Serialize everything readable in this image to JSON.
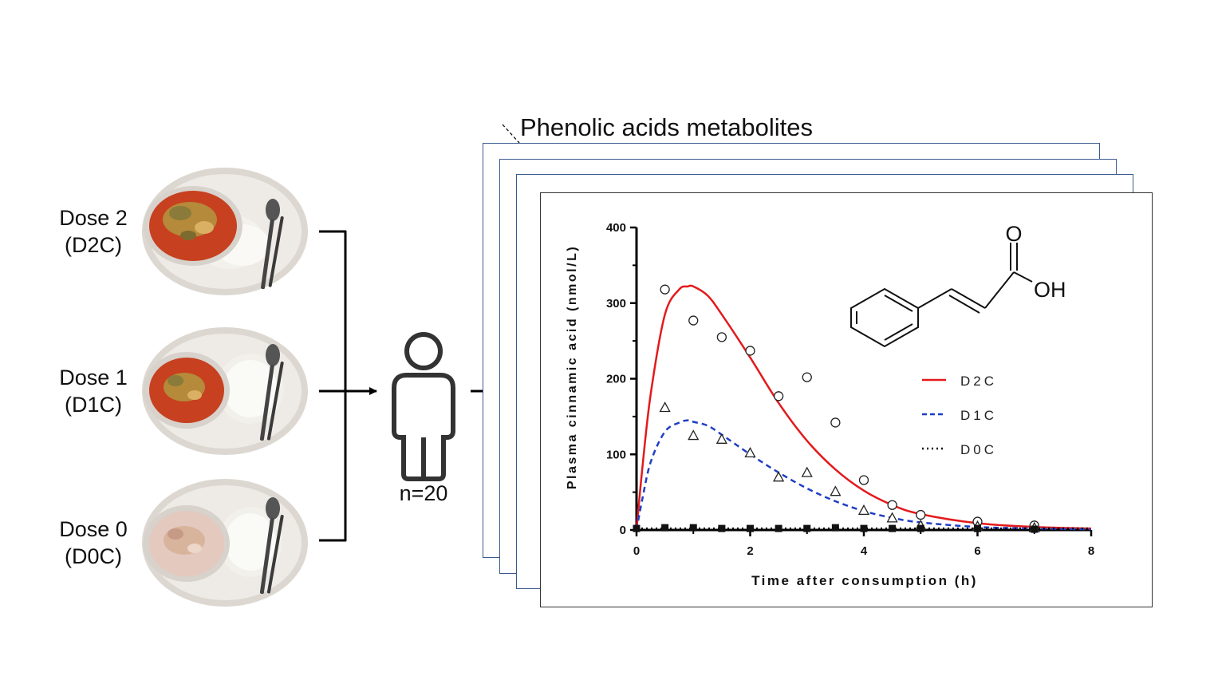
{
  "doses": [
    {
      "name": "Dose 2",
      "code": "(D2C)"
    },
    {
      "name": "Dose 1",
      "code": "(D1C)"
    },
    {
      "name": "Dose 0",
      "code": "(D0C)"
    }
  ],
  "participants_label": "n=20",
  "panel_title": "Phenolic acids metabolites",
  "structure_labels": {
    "carbonyl_o": "O",
    "hydroxyl": "OH"
  },
  "colors": {
    "d2c": "#e31a1c",
    "d1c": "#1f3fc4",
    "d0c": "#000000",
    "frame": "#3b5a8f"
  },
  "chart_data": {
    "type": "scatter",
    "xlabel": "Time after consumption (h)",
    "ylabel": "Plasma cinnamic acid (nmol/L)",
    "xlim": [
      0,
      8
    ],
    "ylim": [
      0,
      400
    ],
    "xticks": [
      "0",
      "2",
      "4",
      "6",
      "8"
    ],
    "yticks": [
      "0",
      "100",
      "200",
      "300",
      "400"
    ],
    "legend_position": "right",
    "series": [
      {
        "name": "D2C",
        "marker": "circle",
        "line": "solid",
        "points": [
          [
            0.5,
            318
          ],
          [
            1,
            277
          ],
          [
            1.5,
            255
          ],
          [
            2,
            237
          ],
          [
            2.5,
            177
          ],
          [
            3,
            202
          ],
          [
            3.5,
            142
          ],
          [
            4,
            66
          ],
          [
            4.5,
            33
          ],
          [
            5,
            20
          ],
          [
            6,
            11
          ],
          [
            7,
            6
          ]
        ],
        "fit": [
          [
            0,
            0
          ],
          [
            0.1,
            80
          ],
          [
            0.25,
            180
          ],
          [
            0.5,
            285
          ],
          [
            0.75,
            318
          ],
          [
            0.9,
            322
          ],
          [
            1.0,
            322
          ],
          [
            1.25,
            310
          ],
          [
            1.5,
            285
          ],
          [
            2,
            228
          ],
          [
            2.5,
            168
          ],
          [
            3,
            118
          ],
          [
            3.5,
            80
          ],
          [
            4,
            52
          ],
          [
            4.5,
            33
          ],
          [
            5,
            21
          ],
          [
            6,
            9
          ],
          [
            7,
            4
          ],
          [
            8,
            2
          ]
        ]
      },
      {
        "name": "D1C",
        "marker": "triangle",
        "line": "dashed",
        "points": [
          [
            0.5,
            162
          ],
          [
            1,
            125
          ],
          [
            1.5,
            120
          ],
          [
            2,
            102
          ],
          [
            2.5,
            70
          ],
          [
            3,
            76
          ],
          [
            3.5,
            51
          ],
          [
            4,
            26
          ],
          [
            4.5,
            16
          ],
          [
            5,
            6
          ],
          [
            6,
            5
          ],
          [
            7,
            3
          ]
        ],
        "fit": [
          [
            0,
            0
          ],
          [
            0.1,
            40
          ],
          [
            0.25,
            90
          ],
          [
            0.5,
            130
          ],
          [
            0.75,
            142
          ],
          [
            0.9,
            145
          ],
          [
            1.0,
            143
          ],
          [
            1.25,
            138
          ],
          [
            1.5,
            126
          ],
          [
            2,
            100
          ],
          [
            2.5,
            76
          ],
          [
            3,
            55
          ],
          [
            3.5,
            38
          ],
          [
            4,
            25
          ],
          [
            4.5,
            16
          ],
          [
            5,
            10
          ],
          [
            6,
            4
          ],
          [
            7,
            2
          ],
          [
            8,
            1
          ]
        ]
      },
      {
        "name": "D0C",
        "marker": "square",
        "line": "dotted",
        "points": [
          [
            0,
            2
          ],
          [
            0.5,
            3
          ],
          [
            1,
            3
          ],
          [
            1.5,
            2
          ],
          [
            2,
            2
          ],
          [
            2.5,
            2
          ],
          [
            3,
            2
          ],
          [
            3.5,
            3
          ],
          [
            4,
            2
          ],
          [
            4.5,
            2
          ],
          [
            5,
            2
          ],
          [
            6,
            2
          ],
          [
            7,
            1
          ]
        ],
        "fit": [
          [
            0,
            2
          ],
          [
            8,
            2
          ]
        ]
      }
    ]
  }
}
